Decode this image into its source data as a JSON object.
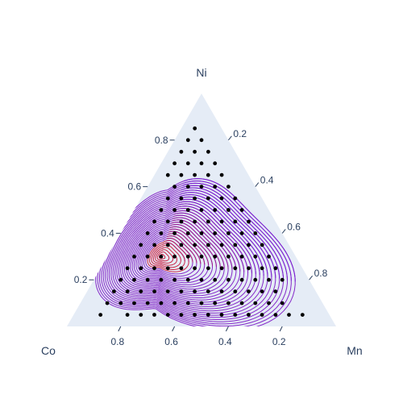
{
  "chart_data": {
    "type": "ternary-contour",
    "axes": {
      "a": {
        "title": "Ni",
        "ticks": [
          "0.2",
          "0.4",
          "0.6",
          "0.8"
        ],
        "tick_values": [
          0.2,
          0.4,
          0.6,
          0.8
        ]
      },
      "b": {
        "title": "Co",
        "ticks": [
          "0.2",
          "0.4",
          "0.6",
          "0.8"
        ],
        "tick_values": [
          0.2,
          0.4,
          0.6,
          0.8
        ]
      },
      "c": {
        "title": "Mn",
        "ticks": [
          "0.2",
          "0.4",
          "0.6",
          "0.8"
        ],
        "tick_values": [
          0.2,
          0.4,
          0.6,
          0.8
        ]
      }
    },
    "background_color": "#e5ecf6",
    "contour_colorscale": [
      "#7a1fd0",
      "#c8163a",
      "#ff0a28"
    ],
    "marker_color": "#000000",
    "contour_center": {
      "a": 0.3,
      "b": 0.5,
      "c": 0.2
    },
    "points": {
      "grid_step": 0.05,
      "description_free": true,
      "rows": [
        {
          "a": 0.85,
          "b_values": [
            0.1
          ]
        },
        {
          "a": 0.8,
          "b_values": [
            0.15,
            0.1
          ]
        },
        {
          "a": 0.75,
          "b_values": [
            0.2,
            0.15,
            0.1
          ]
        },
        {
          "a": 0.7,
          "b_values": [
            0.25,
            0.2,
            0.15,
            0.1
          ]
        },
        {
          "a": 0.65,
          "b_values": [
            0.3,
            0.25,
            0.2,
            0.15,
            0.1
          ]
        },
        {
          "a": 0.6,
          "b_values": [
            0.3,
            0.25,
            0.2,
            0.15,
            0.1
          ]
        },
        {
          "a": 0.55,
          "b_values": [
            0.35,
            0.3,
            0.25,
            0.2,
            0.15,
            0.1
          ]
        },
        {
          "a": 0.5,
          "b_values": [
            0.4,
            0.35,
            0.3,
            0.25,
            0.2,
            0.15,
            0.1
          ]
        },
        {
          "a": 0.45,
          "b_values": [
            0.45,
            0.4,
            0.35,
            0.3,
            0.25,
            0.2,
            0.15,
            0.1
          ]
        },
        {
          "a": 0.4,
          "b_values": [
            0.5,
            0.45,
            0.4,
            0.35,
            0.3,
            0.25,
            0.2,
            0.15,
            0.1
          ]
        },
        {
          "a": 0.35,
          "b_values": [
            0.55,
            0.5,
            0.45,
            0.4,
            0.35,
            0.3,
            0.25,
            0.2,
            0.15,
            0.1
          ]
        },
        {
          "a": 0.3,
          "b_values": [
            0.6,
            0.55,
            0.5,
            0.45,
            0.4,
            0.35,
            0.3,
            0.25,
            0.2,
            0.15,
            0.1
          ]
        },
        {
          "a": 0.25,
          "b_values": [
            0.65,
            0.6,
            0.55,
            0.5,
            0.45,
            0.4,
            0.35,
            0.3,
            0.25,
            0.2,
            0.15,
            0.1
          ]
        },
        {
          "a": 0.2,
          "b_values": [
            0.7,
            0.65,
            0.6,
            0.55,
            0.5,
            0.45,
            0.4,
            0.35,
            0.3,
            0.25,
            0.2,
            0.15,
            0.1
          ]
        },
        {
          "a": 0.15,
          "b_values": [
            0.75,
            0.7,
            0.65,
            0.6,
            0.55,
            0.5,
            0.45,
            0.4,
            0.35,
            0.3,
            0.25,
            0.2,
            0.15
          ]
        },
        {
          "a": 0.1,
          "b_values": [
            0.8,
            0.75,
            0.7,
            0.65,
            0.6,
            0.55,
            0.5,
            0.45,
            0.4,
            0.35,
            0.3,
            0.25,
            0.2,
            0.15
          ]
        },
        {
          "a": 0.05,
          "b_values": [
            0.85,
            0.75,
            0.7,
            0.65,
            0.6,
            0.55,
            0.5,
            0.45,
            0.4,
            0.35,
            0.3,
            0.25,
            0.2,
            0.15,
            0.1
          ]
        }
      ]
    }
  }
}
